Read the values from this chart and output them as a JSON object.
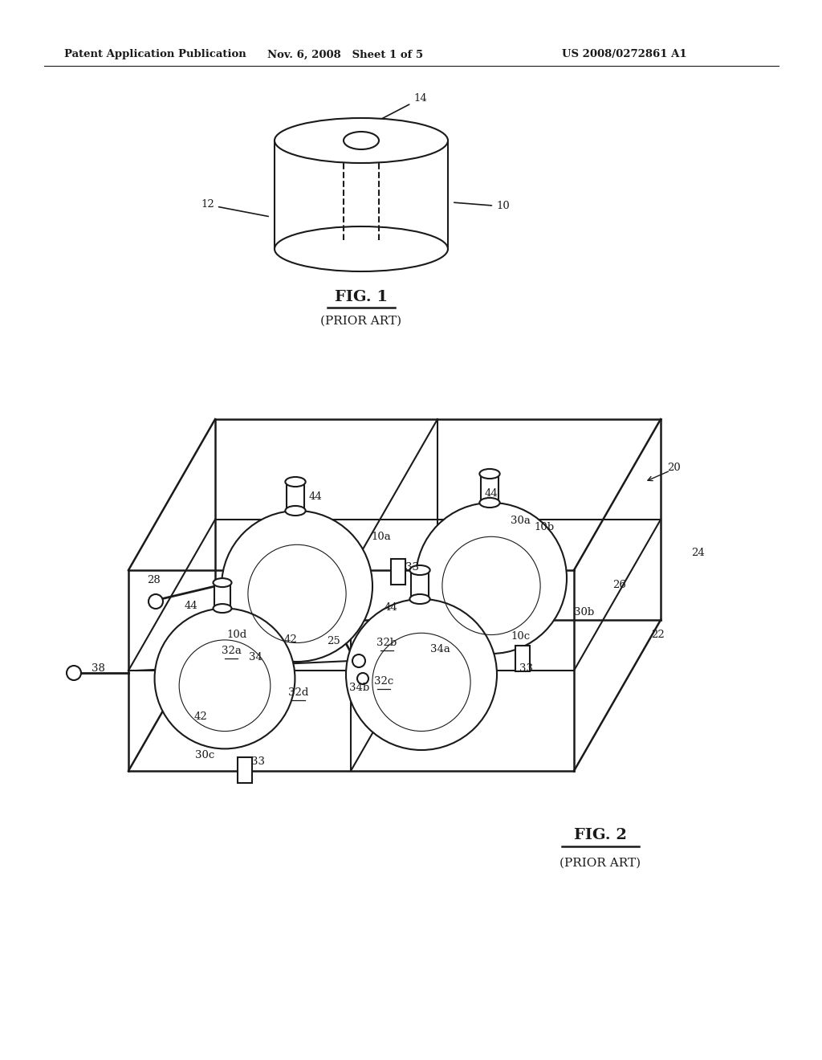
{
  "background_color": "#ffffff",
  "line_color": "#1a1a1a",
  "header_left": "Patent Application Publication",
  "header_mid": "Nov. 6, 2008   Sheet 1 of 5",
  "header_right": "US 2008/0272861 A1",
  "fig1_label": "FIG. 1",
  "fig1_sub": "(PRIOR ART)",
  "fig2_label": "FIG. 2",
  "fig2_sub": "(PRIOR ART)"
}
